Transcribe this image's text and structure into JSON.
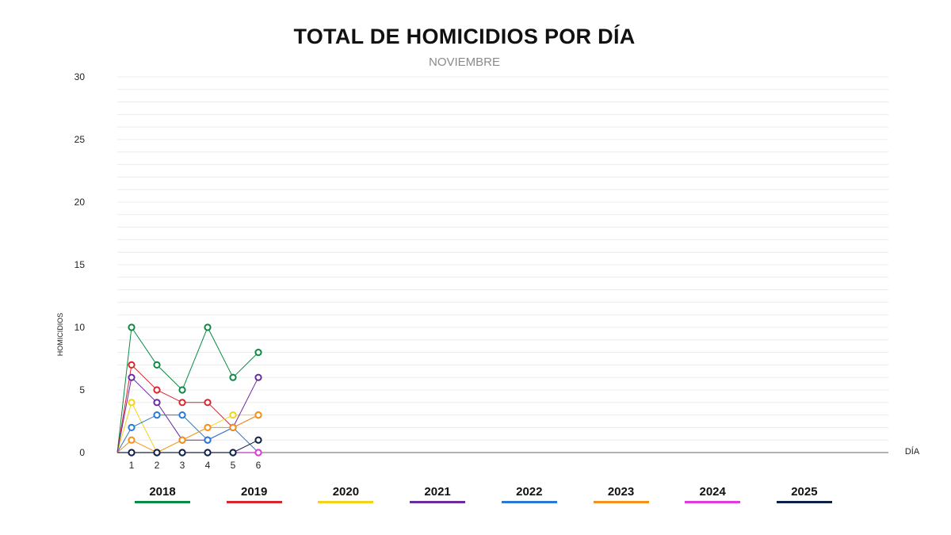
{
  "title": "TOTAL DE HOMICIDIOS POR DÍA",
  "subtitle": "NOVIEMBRE",
  "chart_data": {
    "type": "line",
    "title": "TOTAL DE HOMICIDIOS POR DÍA",
    "subtitle": "NOVIEMBRE",
    "xlabel": "DÍA",
    "ylabel": "HOMICIDIOS",
    "ylim": [
      0,
      30
    ],
    "yticks": [
      0,
      5,
      10,
      15,
      20,
      25,
      30
    ],
    "x": [
      1,
      2,
      3,
      4,
      5,
      6
    ],
    "grid": true,
    "legend_position": "bottom",
    "series": [
      {
        "name": "2018",
        "color": "#0b8a43",
        "values": [
          10,
          7,
          5,
          10,
          6,
          8
        ]
      },
      {
        "name": "2019",
        "color": "#d7262e",
        "values": [
          7,
          5,
          4,
          4,
          2,
          3
        ]
      },
      {
        "name": "2020",
        "color": "#f3d31a",
        "values": [
          4,
          0,
          1,
          2,
          3,
          3
        ]
      },
      {
        "name": "2021",
        "color": "#6a2c9e",
        "values": [
          6,
          4,
          1,
          1,
          2,
          6
        ]
      },
      {
        "name": "2022",
        "color": "#2a79d1",
        "values": [
          2,
          3,
          3,
          1,
          2,
          0
        ]
      },
      {
        "name": "2023",
        "color": "#f2911c",
        "values": [
          1,
          0,
          1,
          2,
          2,
          3
        ]
      },
      {
        "name": "2024",
        "color": "#e13ad8",
        "values": [
          0,
          0,
          0,
          0,
          0,
          0
        ]
      },
      {
        "name": "2025",
        "color": "#0c2146",
        "values": [
          0,
          0,
          0,
          0,
          0,
          1
        ]
      }
    ]
  }
}
